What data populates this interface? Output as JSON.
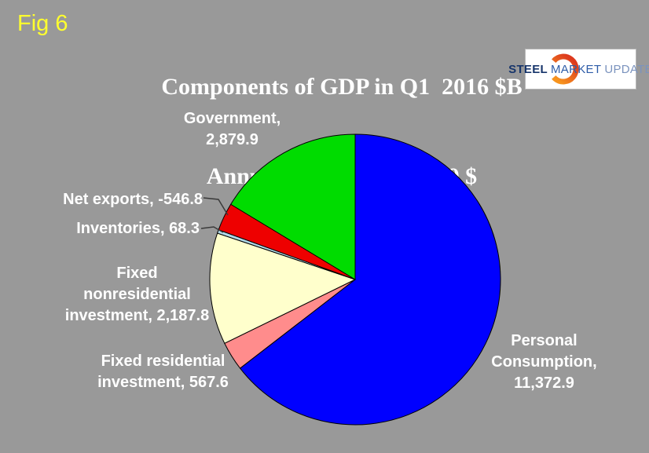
{
  "header": {
    "fig_label": "Fig 6",
    "title": "Components of GDP in Q1  2016 $B",
    "subtitle": "Annualized chained 2009 $"
  },
  "logo": {
    "steel": "STEEL",
    "market": "MARKET",
    "update": "UPDATE"
  },
  "colors": {
    "background": "#999999",
    "title_text": "#FFFFFF",
    "fig_label_text": "#FFFF2E",
    "label_text": "#FFFFFF",
    "pie_outline": "#000000",
    "leader_line": "#3a3a3a"
  },
  "chart_data": {
    "type": "pie",
    "title": "Components of GDP in Q1  2016 $B",
    "subtitle": "Annualized chained 2009 $",
    "start_angle_deg": 0,
    "direction": "clockwise",
    "sizing": "slice angles proportional to absolute value",
    "slices": [
      {
        "name": "Personal Consumption",
        "value": 11372.9,
        "label": "Personal\nConsumption,\n11,372.9",
        "color": "#0000FF"
      },
      {
        "name": "Fixed residential investment",
        "value": 567.6,
        "label": "Fixed residential\ninvestment, 567.6",
        "color": "#FF8C8C"
      },
      {
        "name": "Fixed nonresidential investment",
        "value": 2187.8,
        "label": "Fixed\nnonresidential\ninvestment, 2,187.8",
        "color": "#FFFFCC"
      },
      {
        "name": "Inventories",
        "value": 68.3,
        "label": "Inventories, 68.3",
        "color": "#B0D8E8"
      },
      {
        "name": "Net exports",
        "value": -546.8,
        "label": "Net exports, -546.8",
        "color": "#EE0000"
      },
      {
        "name": "Government",
        "value": 2879.9,
        "label": "Government,\n2,879.9",
        "color": "#00DC00"
      }
    ]
  }
}
